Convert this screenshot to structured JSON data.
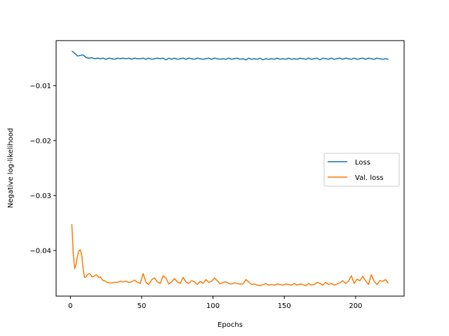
{
  "chart_data": {
    "type": "line",
    "title": "",
    "xlabel": "Epochs",
    "ylabel": "Negative log-likelihood",
    "xlim": [
      -10,
      234
    ],
    "ylim": [
      -0.0483,
      -0.0018
    ],
    "xticks": [
      0,
      50,
      100,
      150,
      200
    ],
    "yticks": [
      -0.01,
      -0.02,
      -0.03,
      -0.04
    ],
    "ytick_labels": [
      "−0.01",
      "−0.02",
      "−0.03",
      "−0.04"
    ],
    "grid": false,
    "legend_position": "center-right",
    "series": [
      {
        "name": "Loss",
        "color": "#1f77b4",
        "x": [
          1,
          3,
          5,
          7,
          9,
          11,
          13,
          15,
          17,
          19,
          21,
          23,
          25,
          27,
          29,
          31,
          33,
          35,
          37,
          39,
          41,
          43,
          45,
          47,
          49,
          51,
          53,
          55,
          57,
          59,
          61,
          63,
          65,
          67,
          69,
          71,
          73,
          75,
          77,
          79,
          81,
          83,
          85,
          87,
          89,
          91,
          93,
          95,
          97,
          99,
          101,
          103,
          105,
          107,
          109,
          111,
          113,
          115,
          117,
          119,
          121,
          123,
          125,
          127,
          129,
          131,
          133,
          135,
          137,
          139,
          141,
          143,
          145,
          147,
          149,
          151,
          153,
          155,
          157,
          159,
          161,
          163,
          165,
          167,
          169,
          171,
          173,
          175,
          177,
          179,
          181,
          183,
          185,
          187,
          189,
          191,
          193,
          195,
          197,
          199,
          201,
          203,
          205,
          207,
          209,
          211,
          213,
          215,
          217,
          219,
          221,
          223
        ],
        "values": [
          -0.0037,
          -0.0041,
          -0.0046,
          -0.0045,
          -0.0044,
          -0.0049,
          -0.005,
          -0.0049,
          -0.0051,
          -0.005,
          -0.0051,
          -0.005,
          -0.0052,
          -0.005,
          -0.0051,
          -0.0052,
          -0.005,
          -0.0051,
          -0.005,
          -0.0051,
          -0.005,
          -0.0052,
          -0.005,
          -0.0051,
          -0.0051,
          -0.005,
          -0.0052,
          -0.005,
          -0.0052,
          -0.0051,
          -0.005,
          -0.0051,
          -0.005,
          -0.0053,
          -0.005,
          -0.0052,
          -0.005,
          -0.0052,
          -0.0051,
          -0.005,
          -0.0052,
          -0.005,
          -0.0051,
          -0.0052,
          -0.005,
          -0.0051,
          -0.0052,
          -0.0051,
          -0.005,
          -0.0052,
          -0.005,
          -0.0051,
          -0.0052,
          -0.0051,
          -0.0052,
          -0.005,
          -0.0052,
          -0.0051,
          -0.005,
          -0.0052,
          -0.0051,
          -0.0053,
          -0.005,
          -0.0052,
          -0.0051,
          -0.0052,
          -0.005,
          -0.0053,
          -0.0051,
          -0.0052,
          -0.0051,
          -0.0052,
          -0.005,
          -0.0052,
          -0.0051,
          -0.0052,
          -0.005,
          -0.0052,
          -0.0051,
          -0.0052,
          -0.005,
          -0.0051,
          -0.0052,
          -0.005,
          -0.0052,
          -0.0051,
          -0.005,
          -0.0053,
          -0.005,
          -0.0051,
          -0.0052,
          -0.005,
          -0.0052,
          -0.0051,
          -0.005,
          -0.0052,
          -0.005,
          -0.0051,
          -0.0052,
          -0.005,
          -0.0052,
          -0.0051,
          -0.005,
          -0.0052,
          -0.005,
          -0.0051,
          -0.0052,
          -0.005,
          -0.0051,
          -0.0052,
          -0.0051,
          -0.0052
        ]
      },
      {
        "name": "Val. loss",
        "color": "#ff7f0e",
        "x": [
          1,
          2,
          3,
          4,
          5,
          6,
          7,
          8,
          9,
          10,
          11,
          12,
          13,
          14,
          15,
          16,
          17,
          18,
          19,
          20,
          21,
          22,
          23,
          24,
          25,
          27,
          29,
          31,
          33,
          35,
          37,
          39,
          41,
          43,
          45,
          47,
          49,
          51,
          53,
          55,
          57,
          59,
          61,
          63,
          65,
          67,
          69,
          71,
          73,
          75,
          77,
          79,
          81,
          83,
          85,
          87,
          89,
          91,
          93,
          95,
          97,
          99,
          101,
          103,
          105,
          107,
          109,
          111,
          113,
          115,
          117,
          119,
          121,
          123,
          125,
          127,
          129,
          131,
          133,
          135,
          137,
          139,
          141,
          143,
          145,
          147,
          149,
          151,
          153,
          155,
          157,
          159,
          161,
          163,
          165,
          167,
          169,
          171,
          173,
          175,
          177,
          179,
          181,
          183,
          185,
          187,
          189,
          191,
          193,
          195,
          197,
          199,
          201,
          203,
          205,
          207,
          209,
          211,
          213,
          215,
          217,
          219,
          221,
          223
        ],
        "values": [
          -0.0352,
          -0.0405,
          -0.0433,
          -0.0425,
          -0.041,
          -0.04,
          -0.0399,
          -0.041,
          -0.0435,
          -0.0449,
          -0.0448,
          -0.0444,
          -0.0442,
          -0.0443,
          -0.0448,
          -0.0448,
          -0.0446,
          -0.0444,
          -0.0446,
          -0.0449,
          -0.0448,
          -0.0452,
          -0.0455,
          -0.0455,
          -0.0457,
          -0.0459,
          -0.0459,
          -0.0458,
          -0.0458,
          -0.0456,
          -0.0457,
          -0.0456,
          -0.0458,
          -0.0457,
          -0.0454,
          -0.0458,
          -0.046,
          -0.0442,
          -0.0458,
          -0.0462,
          -0.0453,
          -0.045,
          -0.0457,
          -0.046,
          -0.0446,
          -0.045,
          -0.0461,
          -0.0457,
          -0.0451,
          -0.0457,
          -0.046,
          -0.0449,
          -0.0457,
          -0.046,
          -0.0455,
          -0.0457,
          -0.0462,
          -0.0456,
          -0.046,
          -0.0453,
          -0.0458,
          -0.0456,
          -0.045,
          -0.0455,
          -0.0461,
          -0.0458,
          -0.0457,
          -0.046,
          -0.0461,
          -0.0459,
          -0.046,
          -0.0461,
          -0.0461,
          -0.0453,
          -0.0457,
          -0.0462,
          -0.0461,
          -0.0463,
          -0.0464,
          -0.0462,
          -0.046,
          -0.0463,
          -0.0462,
          -0.0463,
          -0.0461,
          -0.0462,
          -0.0463,
          -0.0461,
          -0.0462,
          -0.0463,
          -0.046,
          -0.0463,
          -0.0461,
          -0.0462,
          -0.0464,
          -0.046,
          -0.0463,
          -0.0462,
          -0.0458,
          -0.046,
          -0.0463,
          -0.0458,
          -0.0462,
          -0.046,
          -0.0463,
          -0.0461,
          -0.0459,
          -0.0455,
          -0.046,
          -0.0456,
          -0.0446,
          -0.046,
          -0.0452,
          -0.0455,
          -0.0447,
          -0.0455,
          -0.0462,
          -0.0444,
          -0.0456,
          -0.0462,
          -0.0455,
          -0.0456,
          -0.0453,
          -0.046
        ]
      }
    ]
  }
}
